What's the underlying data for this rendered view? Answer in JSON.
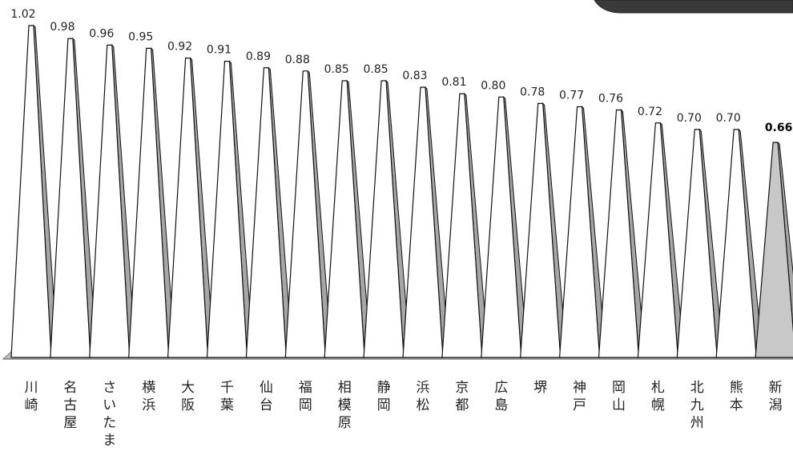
{
  "chart_data": {
    "type": "bar",
    "categories": [
      "川崎",
      "名古屋",
      "さいたま",
      "横浜",
      "大阪",
      "千葉",
      "仙台",
      "福岡",
      "相模原",
      "静岡",
      "浜松",
      "京都",
      "広島",
      "堺",
      "神戸",
      "岡山",
      "札幌",
      "北九州",
      "熊本",
      "新潟"
    ],
    "values": [
      1.02,
      0.98,
      0.96,
      0.95,
      0.92,
      0.91,
      0.89,
      0.88,
      0.85,
      0.85,
      0.83,
      0.81,
      0.8,
      0.78,
      0.77,
      0.76,
      0.72,
      0.7,
      0.7,
      0.66
    ],
    "value_labels": [
      "1.02",
      "0.98",
      "0.96",
      "0.95",
      "0.92",
      "0.91",
      "0.89",
      "0.88",
      "0.85",
      "0.85",
      "0.83",
      "0.81",
      "0.80",
      "0.78",
      "0.77",
      "0.76",
      "0.72",
      "0.70",
      "0.70",
      "0.66"
    ],
    "highlight_index": 19,
    "title": "",
    "xlabel": "",
    "ylabel": "",
    "ylim": [
      0,
      1.02
    ],
    "grid": false,
    "legend": "none",
    "colors": {
      "bar_face": "#ffffff",
      "bar_side": "#a6a6a6",
      "highlight_face": "#c8c8c8",
      "outline": "#111111",
      "floor": "#bfbfbf",
      "banner": "#3a3a3a"
    }
  }
}
